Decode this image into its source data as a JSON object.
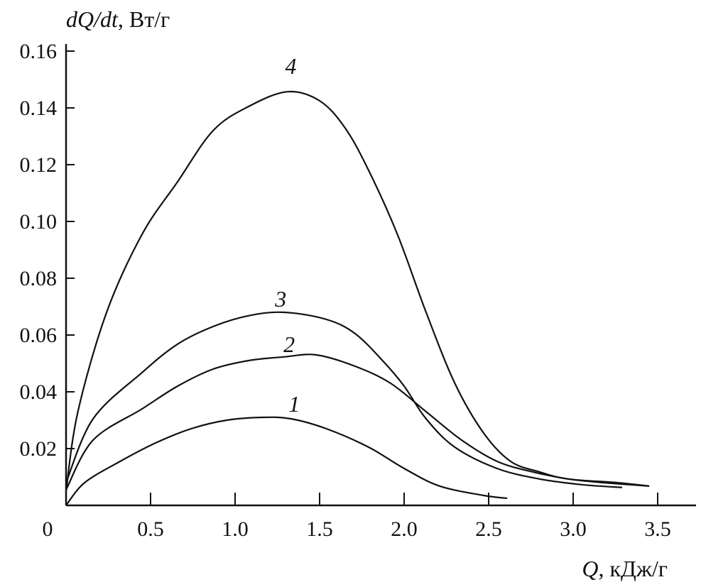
{
  "chart_data": {
    "type": "line",
    "ylabel_italic": "dQ/dt",
    "ylabel_units": ", Вт/г",
    "xlabel_italic": "Q",
    "xlabel_units": ", кДж/г",
    "xlim": [
      0,
      3.8
    ],
    "ylim": [
      0,
      0.16
    ],
    "grid": false,
    "x_ticks": [
      "0",
      "0.5",
      "1.0",
      "1.5",
      "2.0",
      "2.5",
      "3.0",
      "3.5"
    ],
    "x_tick_values": [
      0,
      0.5,
      1.0,
      1.5,
      2.0,
      2.5,
      3.0,
      3.5
    ],
    "y_ticks": [
      "0.02",
      "0.04",
      "0.06",
      "0.08",
      "0.10",
      "0.12",
      "0.14",
      "0.16"
    ],
    "y_tick_values": [
      0.02,
      0.04,
      0.06,
      0.08,
      0.1,
      0.12,
      0.14,
      0.16
    ],
    "series": [
      {
        "name": "1",
        "label_at": [
          1.35,
          0.033
        ],
        "x": [
          0,
          0.11,
          0.32,
          0.53,
          0.74,
          0.95,
          1.16,
          1.33,
          1.54,
          1.79,
          2.0,
          2.21,
          2.47,
          2.61
        ],
        "y": [
          0,
          0.008,
          0.0155,
          0.022,
          0.027,
          0.03,
          0.031,
          0.0305,
          0.027,
          0.0205,
          0.013,
          0.0068,
          0.0035,
          0.0025
        ]
      },
      {
        "name": "2",
        "label_at": [
          1.32,
          0.054
        ],
        "x": [
          0,
          0.16,
          0.45,
          0.66,
          0.87,
          1.08,
          1.29,
          1.48,
          1.71,
          1.92,
          2.13,
          2.34,
          2.55,
          2.76,
          2.97,
          3.18,
          3.45
        ],
        "y": [
          0.0055,
          0.023,
          0.034,
          0.042,
          0.048,
          0.051,
          0.0523,
          0.053,
          0.049,
          0.043,
          0.033,
          0.023,
          0.0155,
          0.0118,
          0.0093,
          0.008,
          0.0068
        ]
      },
      {
        "name": "3",
        "label_at": [
          1.27,
          0.07
        ],
        "x": [
          0,
          0.16,
          0.45,
          0.66,
          0.87,
          1.08,
          1.29,
          1.54,
          1.71,
          1.88,
          2.0,
          2.13,
          2.3,
          2.55,
          2.8,
          3.05,
          3.29
        ],
        "y": [
          0.008,
          0.0305,
          0.0468,
          0.0568,
          0.063,
          0.0668,
          0.068,
          0.0655,
          0.0605,
          0.0505,
          0.042,
          0.0305,
          0.0205,
          0.013,
          0.0093,
          0.0073,
          0.0063
        ]
      },
      {
        "name": "4",
        "label_at": [
          1.33,
          0.152
        ],
        "x": [
          0,
          0.07,
          0.24,
          0.45,
          0.66,
          0.87,
          1.08,
          1.31,
          1.5,
          1.65,
          1.79,
          1.96,
          2.13,
          2.3,
          2.47,
          2.63,
          2.8,
          2.97,
          3.26,
          3.45
        ],
        "y": [
          0.005,
          0.033,
          0.068,
          0.0955,
          0.114,
          0.132,
          0.1405,
          0.1457,
          0.1425,
          0.133,
          0.118,
          0.0955,
          0.068,
          0.043,
          0.0255,
          0.0155,
          0.0118,
          0.0093,
          0.008,
          0.0068
        ]
      }
    ]
  }
}
